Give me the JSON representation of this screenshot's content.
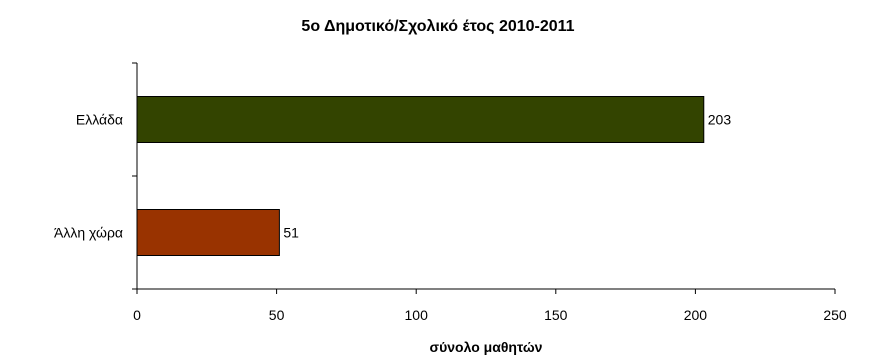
{
  "chart_data": {
    "type": "bar",
    "orientation": "horizontal",
    "title": "5ο Δημοτικό/Σχολικό έτος 2010-2011",
    "xlabel": "σύνολο μαθητών",
    "ylabel": "",
    "categories": [
      "Ελλάδα",
      "Άλλη χώρα"
    ],
    "values": [
      203,
      51
    ],
    "colors": [
      "#334400",
      "#993300"
    ],
    "xlim": [
      0,
      250
    ],
    "xticks": [
      0,
      50,
      100,
      150,
      200,
      250
    ],
    "grid": false,
    "data_labels": true
  }
}
